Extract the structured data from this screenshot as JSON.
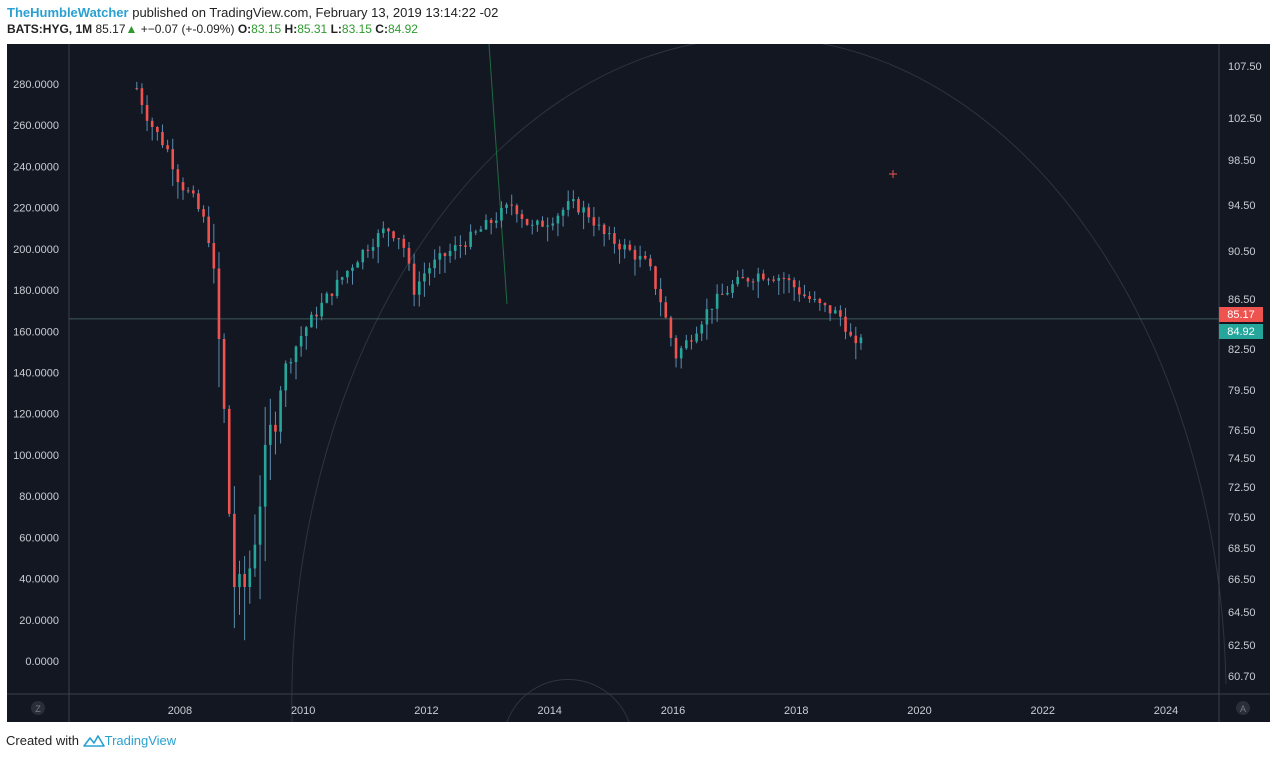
{
  "header": {
    "author": "TheHumbleWatcher",
    "published": "published on TradingView.com, February 13, 2019 13:14:22 -02",
    "symbol": "BATS:HYG, 1M",
    "last": "85.17",
    "arrow": "▲",
    "change": "+−0.07 (+-0.09%)",
    "o_label": "O:",
    "o_value": "83.15",
    "h_label": "H:",
    "h_value": "85.31",
    "l_label": "L:",
    "l_value": "83.15",
    "c_label": "C:",
    "c_value": "84.92"
  },
  "colors": {
    "background": "#131722",
    "up": "#26a69a",
    "down": "#ef5350",
    "wick": "#5b8db0",
    "axis_text": "#c9ccd3",
    "circle": "#2d3440",
    "brand": "#2aa0d2"
  },
  "chart_data": {
    "type": "candlestick",
    "title": "",
    "xlabel": "",
    "ylabel": "",
    "x_ticks": [
      "2008",
      "2010",
      "2012",
      "2014",
      "2016",
      "2018",
      "2020",
      "2022",
      "2024"
    ],
    "xlim": [
      2006.2,
      2024.86
    ],
    "left_axis": {
      "ticks": [
        "280.0000",
        "260.0000",
        "240.0000",
        "220.0000",
        "200.0000",
        "180.0000",
        "160.0000",
        "140.0000",
        "120.0000",
        "100.0000",
        "80.0000",
        "60.0000",
        "40.0000",
        "20.0000",
        "0.0000"
      ],
      "range": [
        -14.8,
        292.1
      ]
    },
    "right_axis": {
      "ticks": [
        "107.50",
        "102.50",
        "98.50",
        "94.50",
        "90.50",
        "86.50",
        "82.50",
        "79.50",
        "76.50",
        "74.50",
        "72.50",
        "70.50",
        "68.50",
        "66.50",
        "64.50",
        "62.50",
        "60.70"
      ]
    },
    "price_labels": [
      {
        "text": "85.17",
        "kind": "down"
      },
      {
        "text": "84.92",
        "kind": "up"
      }
    ],
    "horizontal_line_value": 166,
    "axis_buttons": {
      "left": "Z",
      "right": "A"
    },
    "series": [
      {
        "name": "",
        "points": [
          [
            2007.3,
            278
          ],
          [
            2007.5,
            262
          ],
          [
            2007.8,
            248
          ],
          [
            2008.0,
            232
          ],
          [
            2008.2,
            225
          ],
          [
            2008.45,
            210
          ],
          [
            2008.6,
            168
          ],
          [
            2008.75,
            105
          ],
          [
            2008.85,
            40
          ],
          [
            2009.0,
            30
          ],
          [
            2009.15,
            48
          ],
          [
            2009.3,
            80
          ],
          [
            2009.5,
            115
          ],
          [
            2009.7,
            142
          ],
          [
            2010.0,
            160
          ],
          [
            2010.35,
            175
          ],
          [
            2010.6,
            185
          ],
          [
            2011.0,
            200
          ],
          [
            2011.35,
            210
          ],
          [
            2011.6,
            205
          ],
          [
            2011.8,
            180
          ],
          [
            2012.0,
            190
          ],
          [
            2012.35,
            198
          ],
          [
            2012.7,
            205
          ],
          [
            2013.0,
            212
          ],
          [
            2013.4,
            222
          ],
          [
            2013.7,
            210
          ],
          [
            2014.0,
            214
          ],
          [
            2014.35,
            222
          ],
          [
            2014.6,
            218
          ],
          [
            2014.9,
            206
          ],
          [
            2015.25,
            200
          ],
          [
            2015.6,
            192
          ],
          [
            2015.8,
            175
          ],
          [
            2016.05,
            148
          ],
          [
            2016.3,
            158
          ],
          [
            2016.6,
            172
          ],
          [
            2017.0,
            183
          ],
          [
            2017.4,
            188
          ],
          [
            2017.8,
            186
          ],
          [
            2018.1,
            178
          ],
          [
            2018.4,
            172
          ],
          [
            2018.7,
            168
          ],
          [
            2018.85,
            160
          ],
          [
            2018.95,
            150
          ],
          [
            2019.1,
            163
          ]
        ]
      }
    ]
  },
  "footer": {
    "created_with": "Created with",
    "brand": "TradingView"
  }
}
